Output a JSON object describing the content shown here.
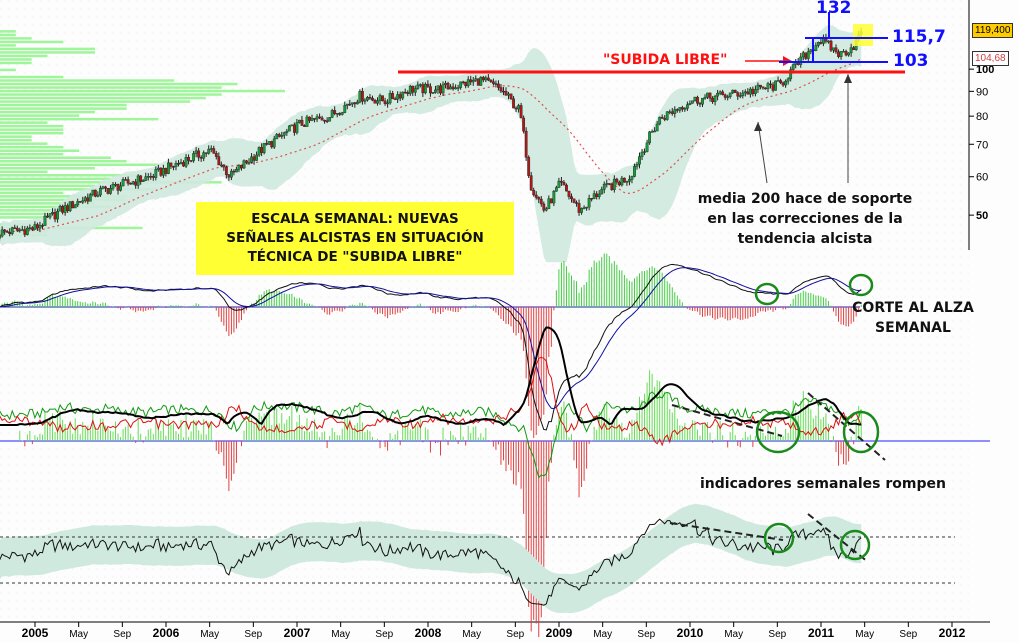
{
  "chart_data": {
    "type": "candlestick",
    "title": "",
    "xlabel": "",
    "ylabel": "",
    "x_ticks": [
      "2005",
      "May",
      "Sep",
      "2006",
      "May",
      "Sep",
      "2007",
      "May",
      "Sep",
      "2008",
      "May",
      "Sep",
      "2009",
      "May",
      "Sep",
      "2010",
      "May",
      "Sep",
      "2011",
      "May",
      "Sep",
      "2012"
    ],
    "y_ticks": [
      50,
      60,
      70,
      80,
      90,
      100
    ],
    "ylim": [
      42,
      135
    ],
    "scale": "log",
    "price_anchors": [
      [
        -0.27,
        46
      ],
      [
        0,
        47
      ],
      [
        0.19,
        51
      ],
      [
        0.5,
        56
      ],
      [
        0.88,
        60
      ],
      [
        1.15,
        65
      ],
      [
        1.34,
        68
      ],
      [
        1.49,
        60
      ],
      [
        1.72,
        68
      ],
      [
        2.02,
        77
      ],
      [
        2.25,
        80
      ],
      [
        2.48,
        88
      ],
      [
        2.67,
        86
      ],
      [
        2.86,
        91
      ],
      [
        3.09,
        91
      ],
      [
        3.4,
        95
      ],
      [
        3.55,
        91
      ],
      [
        3.7,
        82
      ],
      [
        3.78,
        58
      ],
      [
        3.89,
        51
      ],
      [
        4.01,
        58
      ],
      [
        4.16,
        51
      ],
      [
        4.31,
        56
      ],
      [
        4.54,
        60
      ],
      [
        4.77,
        79
      ],
      [
        5.0,
        86
      ],
      [
        5.23,
        88
      ],
      [
        5.46,
        90
      ],
      [
        5.69,
        93
      ],
      [
        5.84,
        104
      ],
      [
        5.99,
        115
      ],
      [
        6.15,
        107
      ],
      [
        6.25,
        112
      ],
      [
        6.32,
        119.4
      ]
    ],
    "last_price_label": "119,400",
    "ma200_label": "104,68",
    "series": [
      "weekly candles",
      "40-week moving average (media 200)",
      "envelope band",
      "volume profile",
      "MACD",
      "directional indicators",
      "RSI"
    ],
    "rsi_levels": [
      70,
      30
    ]
  },
  "annotations": {
    "subida_libre": "\"SUBIDA LIBRE\"",
    "target_132": "132",
    "level_115": "115,7",
    "level_103": "103",
    "infobox": [
      "ESCALA SEMANAL: NUEVAS",
      "SEÑALES ALCISTAS EN SITUACIÓN",
      "TÉCNICA DE \"SUBIDA LIBRE\""
    ],
    "media200": [
      "media 200 hace de soporte",
      "en las correcciones de la",
      "tendencia alcista"
    ],
    "corte": [
      "CORTE AL ALZA",
      "SEMANAL"
    ],
    "indicadores": "indicadores semanales rompen"
  },
  "colors": {
    "up": "#1a9a3a",
    "down": "#b01818",
    "band": "#cfe9df",
    "profile": "#9ef59a",
    "resistance": "#ff1010",
    "levels": "#1010ff",
    "highlight": "#ffff33"
  }
}
